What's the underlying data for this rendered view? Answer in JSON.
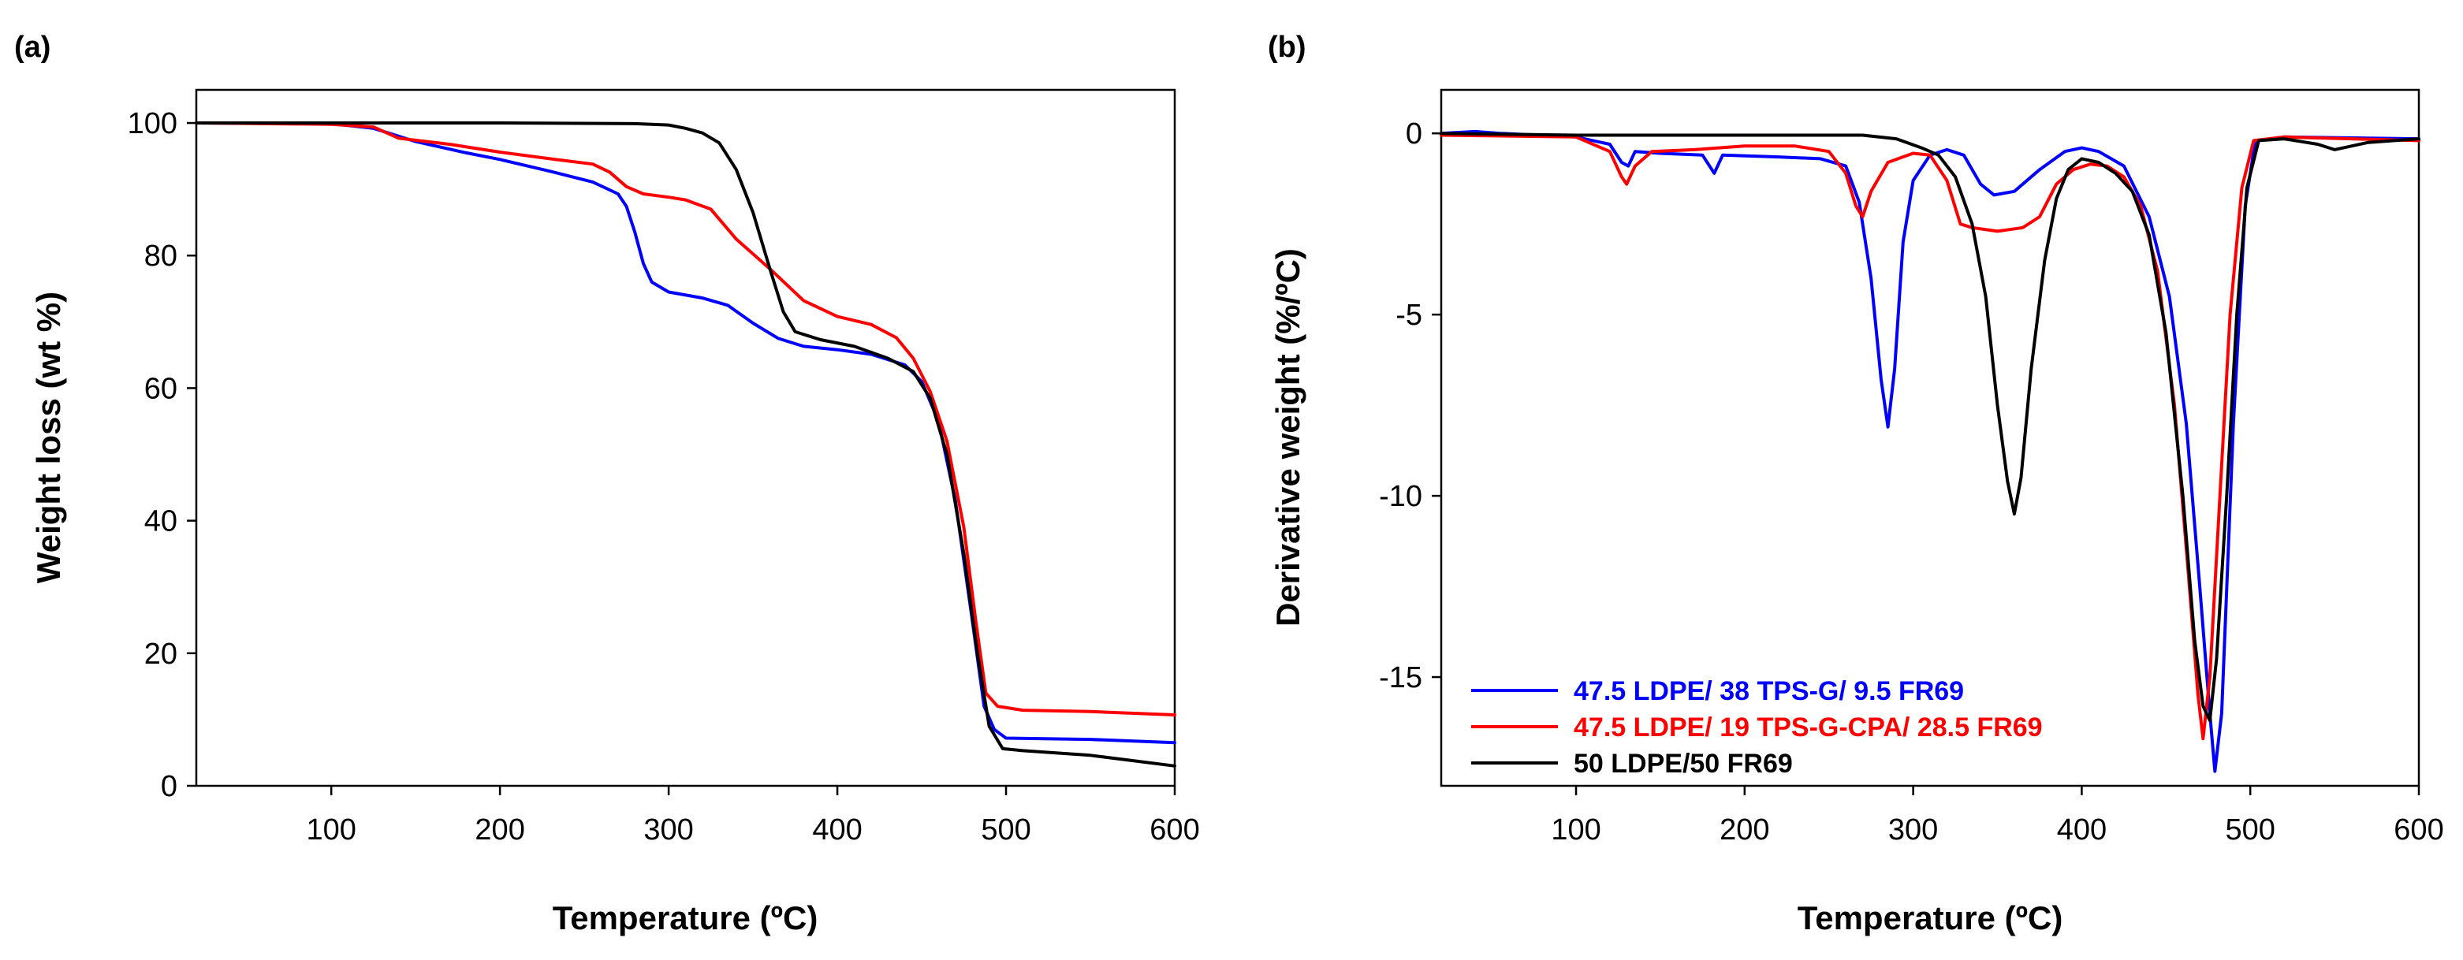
{
  "chart_data": [
    {
      "panel_label": "(a)",
      "type": "line",
      "xlabel": "Temperature (ºC)",
      "ylabel": "Weight loss (wt %)",
      "xlim": [
        20,
        600
      ],
      "ylim": [
        0,
        105
      ],
      "x_ticks": [
        100,
        200,
        300,
        400,
        500,
        600
      ],
      "y_ticks": [
        0,
        20,
        40,
        60,
        80,
        100
      ],
      "grid": false,
      "series": [
        {
          "color": "#0000ff",
          "points": [
            [
              20,
              100
            ],
            [
              100,
              99.9
            ],
            [
              125,
              99.2
            ],
            [
              150,
              97.2
            ],
            [
              180,
              95.5
            ],
            [
              200,
              94.5
            ],
            [
              230,
              92.7
            ],
            [
              255,
              91.1
            ],
            [
              270,
              89.3
            ],
            [
              275,
              87.4
            ],
            [
              280,
              83.5
            ],
            [
              285,
              78.8
            ],
            [
              290,
              76
            ],
            [
              300,
              74.5
            ],
            [
              320,
              73.6
            ],
            [
              335,
              72.5
            ],
            [
              350,
              69.8
            ],
            [
              365,
              67.5
            ],
            [
              380,
              66.3
            ],
            [
              400,
              65.8
            ],
            [
              420,
              65.1
            ],
            [
              440,
              63.5
            ],
            [
              450,
              61
            ],
            [
              460,
              55
            ],
            [
              470,
              43
            ],
            [
              480,
              25
            ],
            [
              487,
              12
            ],
            [
              493,
              8.5
            ],
            [
              500,
              7.2
            ],
            [
              550,
              7
            ],
            [
              600,
              6.5
            ]
          ]
        },
        {
          "color": "#ff0000",
          "points": [
            [
              20,
              100
            ],
            [
              100,
              99.8
            ],
            [
              125,
              99.4
            ],
            [
              140,
              97.7
            ],
            [
              170,
              96.8
            ],
            [
              200,
              95.6
            ],
            [
              230,
              94.6
            ],
            [
              255,
              93.8
            ],
            [
              265,
              92.6
            ],
            [
              275,
              90.4
            ],
            [
              285,
              89.3
            ],
            [
              300,
              88.8
            ],
            [
              310,
              88.4
            ],
            [
              325,
              87
            ],
            [
              340,
              82.5
            ],
            [
              360,
              78
            ],
            [
              380,
              73.2
            ],
            [
              400,
              70.8
            ],
            [
              420,
              69.6
            ],
            [
              435,
              67.6
            ],
            [
              445,
              64.5
            ],
            [
              455,
              59.5
            ],
            [
              465,
              52
            ],
            [
              475,
              39
            ],
            [
              482,
              25
            ],
            [
              488,
              14
            ],
            [
              495,
              12
            ],
            [
              510,
              11.4
            ],
            [
              550,
              11.2
            ],
            [
              600,
              10.7
            ]
          ]
        },
        {
          "color": "#000000",
          "points": [
            [
              20,
              100
            ],
            [
              200,
              100
            ],
            [
              280,
              99.9
            ],
            [
              300,
              99.7
            ],
            [
              310,
              99.2
            ],
            [
              320,
              98.5
            ],
            [
              330,
              97
            ],
            [
              340,
              93
            ],
            [
              350,
              86.5
            ],
            [
              360,
              78
            ],
            [
              368,
              71.5
            ],
            [
              375,
              68.5
            ],
            [
              390,
              67.3
            ],
            [
              410,
              66.3
            ],
            [
              430,
              64.5
            ],
            [
              445,
              62.5
            ],
            [
              455,
              58.5
            ],
            [
              465,
              50
            ],
            [
              475,
              35
            ],
            [
              483,
              20
            ],
            [
              490,
              9
            ],
            [
              498,
              5.6
            ],
            [
              510,
              5.3
            ],
            [
              550,
              4.6
            ],
            [
              600,
              3
            ]
          ]
        }
      ]
    },
    {
      "panel_label": "(b)",
      "type": "line",
      "xlabel": "Temperature (ºC)",
      "ylabel": "Derivative weight (%/ºC)",
      "xlim": [
        20,
        600
      ],
      "ylim": [
        -18,
        1.2
      ],
      "x_ticks": [
        100,
        200,
        300,
        400,
        500,
        600
      ],
      "y_ticks": [
        0,
        -5,
        -10,
        -15
      ],
      "y_tick_labels": [
        "0",
        "-5",
        "-10",
        "-15"
      ],
      "grid": false,
      "legend_position": "bottom-left",
      "series": [
        {
          "name": "47.5 LDPE/ 38 TPS-G/ 9.5 FR69",
          "color": "#0000ff",
          "points": [
            [
              20,
              0
            ],
            [
              40,
              0.05
            ],
            [
              55,
              0
            ],
            [
              100,
              -0.1
            ],
            [
              120,
              -0.3
            ],
            [
              127,
              -0.8
            ],
            [
              131,
              -0.9
            ],
            [
              135,
              -0.5
            ],
            [
              150,
              -0.55
            ],
            [
              175,
              -0.6
            ],
            [
              182,
              -1.1
            ],
            [
              187,
              -0.6
            ],
            [
              220,
              -0.65
            ],
            [
              245,
              -0.7
            ],
            [
              260,
              -0.9
            ],
            [
              268,
              -1.9
            ],
            [
              275,
              -4
            ],
            [
              281,
              -6.8
            ],
            [
              285,
              -8.1
            ],
            [
              289,
              -6.5
            ],
            [
              294,
              -3
            ],
            [
              300,
              -1.3
            ],
            [
              310,
              -0.6
            ],
            [
              320,
              -0.45
            ],
            [
              330,
              -0.6
            ],
            [
              340,
              -1.4
            ],
            [
              348,
              -1.7
            ],
            [
              360,
              -1.6
            ],
            [
              375,
              -1
            ],
            [
              390,
              -0.5
            ],
            [
              400,
              -0.4
            ],
            [
              410,
              -0.5
            ],
            [
              425,
              -0.9
            ],
            [
              440,
              -2.3
            ],
            [
              452,
              -4.5
            ],
            [
              462,
              -8
            ],
            [
              470,
              -12.5
            ],
            [
              476,
              -16
            ],
            [
              479,
              -17.6
            ],
            [
              483,
              -16
            ],
            [
              490,
              -8
            ],
            [
              497,
              -2
            ],
            [
              503,
              -0.2
            ],
            [
              520,
              -0.1
            ],
            [
              600,
              -0.15
            ]
          ]
        },
        {
          "name": "47.5 LDPE/ 19 TPS-G-CPA/ 28.5 FR69",
          "color": "#ff0000",
          "points": [
            [
              20,
              -0.05
            ],
            [
              100,
              -0.1
            ],
            [
              120,
              -0.5
            ],
            [
              127,
              -1.2
            ],
            [
              130,
              -1.4
            ],
            [
              135,
              -0.9
            ],
            [
              145,
              -0.5
            ],
            [
              170,
              -0.45
            ],
            [
              200,
              -0.35
            ],
            [
              230,
              -0.35
            ],
            [
              250,
              -0.5
            ],
            [
              260,
              -1.1
            ],
            [
              266,
              -2
            ],
            [
              270,
              -2.3
            ],
            [
              275,
              -1.6
            ],
            [
              285,
              -0.8
            ],
            [
              300,
              -0.55
            ],
            [
              310,
              -0.6
            ],
            [
              320,
              -1.3
            ],
            [
              328,
              -2.5
            ],
            [
              335,
              -2.6
            ],
            [
              350,
              -2.7
            ],
            [
              365,
              -2.6
            ],
            [
              375,
              -2.3
            ],
            [
              385,
              -1.4
            ],
            [
              395,
              -1
            ],
            [
              405,
              -0.85
            ],
            [
              415,
              -0.9
            ],
            [
              425,
              -1.2
            ],
            [
              435,
              -2
            ],
            [
              445,
              -3.8
            ],
            [
              455,
              -7.5
            ],
            [
              463,
              -12
            ],
            [
              469,
              -15.5
            ],
            [
              472,
              -16.7
            ],
            [
              476,
              -15
            ],
            [
              482,
              -10
            ],
            [
              488,
              -5
            ],
            [
              495,
              -1.5
            ],
            [
              502,
              -0.2
            ],
            [
              520,
              -0.1
            ],
            [
              600,
              -0.2
            ]
          ]
        },
        {
          "name": "50 LDPE/50 FR69",
          "color": "#000000",
          "points": [
            [
              20,
              0
            ],
            [
              100,
              -0.05
            ],
            [
              200,
              -0.05
            ],
            [
              270,
              -0.05
            ],
            [
              290,
              -0.15
            ],
            [
              305,
              -0.4
            ],
            [
              315,
              -0.6
            ],
            [
              325,
              -1.2
            ],
            [
              335,
              -2.5
            ],
            [
              343,
              -4.5
            ],
            [
              350,
              -7.5
            ],
            [
              356,
              -9.6
            ],
            [
              360,
              -10.5
            ],
            [
              364,
              -9.5
            ],
            [
              370,
              -6.5
            ],
            [
              378,
              -3.5
            ],
            [
              385,
              -1.8
            ],
            [
              392,
              -1
            ],
            [
              400,
              -0.7
            ],
            [
              410,
              -0.8
            ],
            [
              420,
              -1.1
            ],
            [
              430,
              -1.6
            ],
            [
              440,
              -2.8
            ],
            [
              450,
              -5.5
            ],
            [
              460,
              -10
            ],
            [
              467,
              -14
            ],
            [
              472,
              -15.8
            ],
            [
              476,
              -16.2
            ],
            [
              480,
              -14.5
            ],
            [
              486,
              -10
            ],
            [
              492,
              -5
            ],
            [
              498,
              -1.5
            ],
            [
              505,
              -0.2
            ],
            [
              520,
              -0.15
            ],
            [
              540,
              -0.3
            ],
            [
              550,
              -0.45
            ],
            [
              570,
              -0.25
            ],
            [
              600,
              -0.15
            ]
          ]
        }
      ]
    }
  ]
}
